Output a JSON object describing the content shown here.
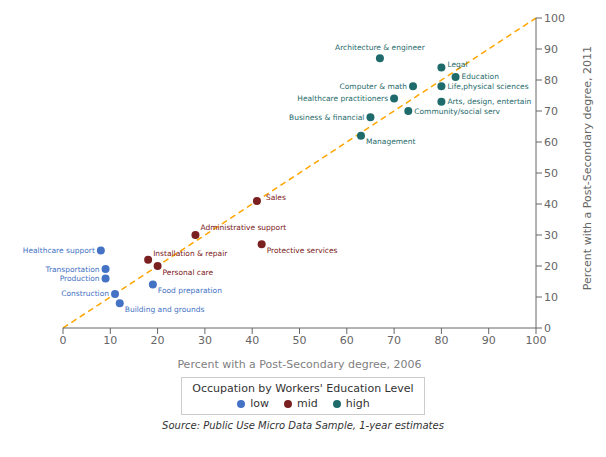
{
  "chart_data": {
    "type": "scatter",
    "xlabel": "Percent with a Post-Secondary degree, 2006",
    "ylabel": "Percent with a Post-Secondary degree, 2011",
    "source": "Source: Public Use Micro Data Sample, 1-year estimates",
    "legend_title": "Occupation by Workers' Education Level",
    "legend": "bottom",
    "xlim": [
      0,
      100
    ],
    "ylim": [
      0,
      100
    ],
    "xticks": [
      0,
      10,
      20,
      30,
      40,
      50,
      60,
      70,
      80,
      90,
      100
    ],
    "yticks": [
      0,
      10,
      20,
      30,
      40,
      50,
      60,
      70,
      80,
      90,
      100
    ],
    "reference_line": {
      "x": [
        0,
        100
      ],
      "y": [
        0,
        100
      ],
      "color": "#FFA500",
      "line_style": "dashed"
    },
    "series": [
      {
        "name": "low",
        "color": "#4472C4",
        "x": [
          9,
          9,
          11,
          12,
          8,
          19
        ],
        "y": [
          19,
          16,
          11,
          8,
          25,
          14
        ],
        "labels": [
          "Transportation",
          "Production",
          "Construction",
          "Building and grounds",
          "Healthcare support",
          "Food preparation"
        ]
      },
      {
        "name": "mid",
        "color": "#7B2020",
        "x": [
          18,
          20,
          28,
          42,
          41
        ],
        "y": [
          22,
          20,
          30,
          27,
          41
        ],
        "labels": [
          "Installation & repair",
          "Personal care",
          "Administrative support",
          "Protective services",
          "Sales"
        ]
      },
      {
        "name": "high",
        "color": "#1F6B6B",
        "x": [
          63,
          65,
          70,
          73,
          80,
          74,
          80,
          67,
          80,
          83
        ],
        "y": [
          62,
          68,
          74,
          70,
          73,
          78,
          78,
          87,
          84,
          81
        ],
        "labels": [
          "Management",
          "Business & financial",
          "Healthcare practitioners",
          "Community/social serv",
          "Arts, design, entertain",
          "Computer & math",
          "Life,physical sciences",
          "Architecture & engineer",
          "Legal",
          "Education"
        ]
      }
    ]
  }
}
